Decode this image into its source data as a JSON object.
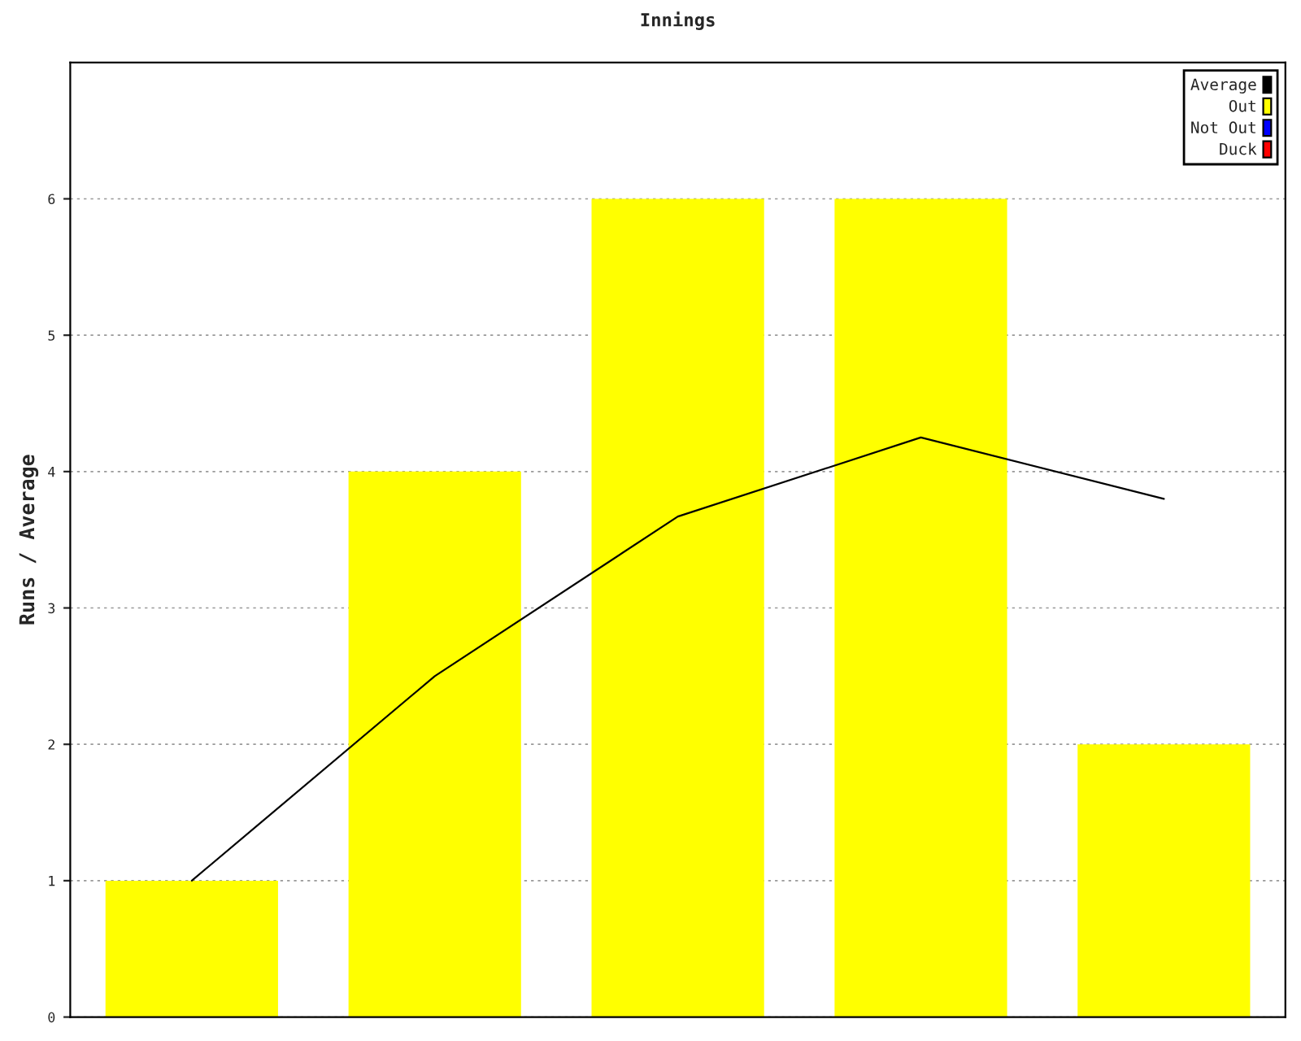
{
  "chart_data": {
    "type": "bar",
    "title": "Innings",
    "ylabel": "Runs / Average",
    "categories": [
      null,
      null,
      null,
      null,
      null
    ],
    "series": [
      {
        "name": "Average",
        "type": "line",
        "color": "#000000",
        "values": [
          1,
          2.5,
          3.67,
          4.25,
          3.8
        ]
      },
      {
        "name": "Out",
        "color": "#ffff00",
        "values": [
          1,
          4,
          6,
          6,
          2
        ]
      },
      {
        "name": "Not Out",
        "color": "#0000ff",
        "values": [
          0,
          0,
          0,
          0,
          0
        ]
      },
      {
        "name": "Duck",
        "color": "#ff0000",
        "values": [
          0,
          0,
          0,
          0,
          0
        ]
      }
    ],
    "ylim": [
      0,
      7
    ],
    "yticks": [
      0,
      1,
      2,
      3,
      4,
      5,
      6
    ],
    "grid": "y",
    "legend": "top right",
    "tick_labels": "y"
  }
}
